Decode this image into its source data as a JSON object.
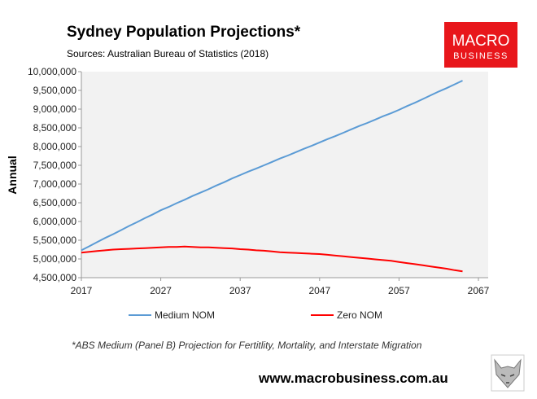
{
  "title": "Sydney Population Projections*",
  "subtitle": "Sources: Australian Bureau of Statistics (2018)",
  "logo": {
    "line1": "MACRO",
    "line2": "BUSINESS",
    "color": "#e8161b"
  },
  "footnote": "*ABS Medium (Panel B) Projection for Fertitlity, Mortality, and Interstate Migration",
  "website": "www.macrobusiness.com.au",
  "fox_logo_icon": "fox-head-icon",
  "chart_data": {
    "type": "line",
    "title": "Sydney Population Projections*",
    "ylabel": "Annual",
    "xlabel": "",
    "xlim": [
      2017,
      2067
    ],
    "ylim": [
      4500000,
      10000000
    ],
    "x_ticks": [
      "2017",
      "2027",
      "2037",
      "2047",
      "2057",
      "2067"
    ],
    "x_tick_values": [
      2017,
      2027,
      2037,
      2047,
      2057,
      2067
    ],
    "y_ticks": [
      "4,500,000",
      "5,000,000",
      "5,500,000",
      "6,000,000",
      "6,500,000",
      "7,000,000",
      "7,500,000",
      "8,000,000",
      "8,500,000",
      "9,000,000",
      "9,500,000",
      "10,000,000"
    ],
    "y_tick_values": [
      4500000,
      5000000,
      5500000,
      6000000,
      6500000,
      7000000,
      7500000,
      8000000,
      8500000,
      9000000,
      9500000,
      10000000
    ],
    "grid": false,
    "legend_position": "bottom",
    "plot_background": "#f2f2f2",
    "x": [
      2017,
      2018,
      2019,
      2020,
      2021,
      2022,
      2023,
      2024,
      2025,
      2026,
      2027,
      2028,
      2029,
      2030,
      2031,
      2032,
      2033,
      2034,
      2035,
      2036,
      2037,
      2038,
      2039,
      2040,
      2041,
      2042,
      2043,
      2044,
      2045,
      2046,
      2047,
      2048,
      2049,
      2050,
      2051,
      2052,
      2053,
      2054,
      2055,
      2056,
      2057,
      2058,
      2059,
      2060,
      2061,
      2062,
      2063,
      2064,
      2065
    ],
    "series": [
      {
        "name": "Medium NOM",
        "color": "#5b9bd5",
        "values": [
          5230000,
          5340000,
          5450000,
          5560000,
          5660000,
          5770000,
          5880000,
          5980000,
          6090000,
          6190000,
          6300000,
          6390000,
          6490000,
          6580000,
          6680000,
          6770000,
          6860000,
          6960000,
          7050000,
          7150000,
          7240000,
          7330000,
          7410000,
          7500000,
          7590000,
          7680000,
          7760000,
          7850000,
          7940000,
          8020000,
          8110000,
          8200000,
          8280000,
          8370000,
          8460000,
          8550000,
          8630000,
          8720000,
          8810000,
          8890000,
          8980000,
          9080000,
          9170000,
          9270000,
          9370000,
          9470000,
          9560000,
          9660000,
          9760000
        ]
      },
      {
        "name": "Zero NOM",
        "color": "#ff0000",
        "values": [
          5170000,
          5190000,
          5210000,
          5230000,
          5250000,
          5260000,
          5270000,
          5280000,
          5290000,
          5300000,
          5310000,
          5320000,
          5320000,
          5330000,
          5320000,
          5310000,
          5310000,
          5300000,
          5290000,
          5280000,
          5260000,
          5250000,
          5230000,
          5220000,
          5200000,
          5180000,
          5170000,
          5160000,
          5150000,
          5140000,
          5130000,
          5110000,
          5090000,
          5070000,
          5050000,
          5030000,
          5010000,
          4990000,
          4970000,
          4950000,
          4920000,
          4890000,
          4860000,
          4830000,
          4800000,
          4770000,
          4740000,
          4700000,
          4670000
        ]
      }
    ]
  }
}
